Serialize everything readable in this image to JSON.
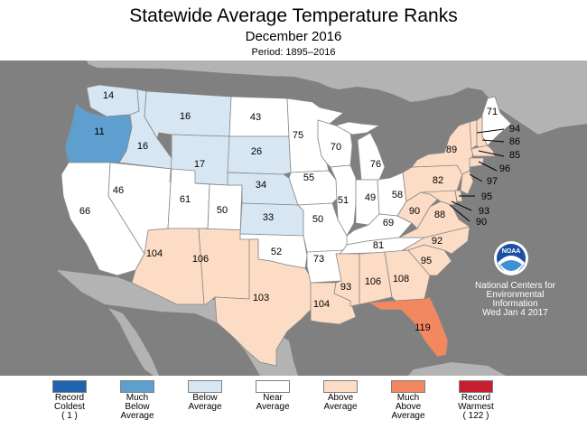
{
  "title": "Statewide Average Temperature Ranks",
  "subtitle": "December 2016",
  "period": "Period: 1895–2016",
  "logo_text": "NOAA",
  "credit": {
    "line1": "National Centers for",
    "line2": "Environmental",
    "line3": "Information",
    "date": "Wed Jan  4 2017"
  },
  "colors": {
    "record_coldest": "#1f63b0",
    "much_below": "#5e9fd0",
    "below": "#d6e7f3",
    "near": "#ffffff",
    "above": "#fddcc5",
    "much_above": "#f3875f",
    "record_warmest": "#c81f30",
    "ocean": "#808080",
    "land": "#b3b3b3",
    "state_border": "#888888"
  },
  "legend": [
    {
      "lines": [
        "Record",
        "Coldest",
        "( 1 )"
      ],
      "color": "#1f63b0"
    },
    {
      "lines": [
        "Much",
        "Below",
        "Average"
      ],
      "color": "#5e9fd0"
    },
    {
      "lines": [
        "Below",
        "Average"
      ],
      "color": "#d6e7f3"
    },
    {
      "lines": [
        "Near",
        "Average"
      ],
      "color": "#ffffff"
    },
    {
      "lines": [
        "Above",
        "Average"
      ],
      "color": "#fddcc5"
    },
    {
      "lines": [
        "Much",
        "Above",
        "Average"
      ],
      "color": "#f3875f"
    },
    {
      "lines": [
        "Record",
        "Warmest",
        "( 122 )"
      ],
      "color": "#c81f30"
    }
  ],
  "states": [
    {
      "state": "Washington",
      "rank": "14",
      "category": "below"
    },
    {
      "state": "Oregon",
      "rank": "11",
      "category": "much_below"
    },
    {
      "state": "California",
      "rank": "66",
      "category": "near"
    },
    {
      "state": "Idaho",
      "rank": "16",
      "category": "below"
    },
    {
      "state": "Nevada",
      "rank": "46",
      "category": "near"
    },
    {
      "state": "Montana",
      "rank": "16",
      "category": "below"
    },
    {
      "state": "Wyoming",
      "rank": "17",
      "category": "below"
    },
    {
      "state": "Utah",
      "rank": "61",
      "category": "near"
    },
    {
      "state": "Colorado",
      "rank": "50",
      "category": "near"
    },
    {
      "state": "Arizona",
      "rank": "104",
      "category": "above"
    },
    {
      "state": "New Mexico",
      "rank": "106",
      "category": "above"
    },
    {
      "state": "North Dakota",
      "rank": "43",
      "category": "near"
    },
    {
      "state": "South Dakota",
      "rank": "26",
      "category": "below"
    },
    {
      "state": "Nebraska",
      "rank": "34",
      "category": "below"
    },
    {
      "state": "Kansas",
      "rank": "33",
      "category": "below"
    },
    {
      "state": "Oklahoma",
      "rank": "52",
      "category": "near"
    },
    {
      "state": "Texas",
      "rank": "103",
      "category": "above"
    },
    {
      "state": "Minnesota",
      "rank": "75",
      "category": "near"
    },
    {
      "state": "Iowa",
      "rank": "55",
      "category": "near"
    },
    {
      "state": "Missouri",
      "rank": "50",
      "category": "near"
    },
    {
      "state": "Arkansas",
      "rank": "73",
      "category": "near"
    },
    {
      "state": "Louisiana",
      "rank": "104",
      "category": "above"
    },
    {
      "state": "Wisconsin",
      "rank": "70",
      "category": "near"
    },
    {
      "state": "Illinois",
      "rank": "51",
      "category": "near"
    },
    {
      "state": "Michigan",
      "rank": "76",
      "category": "near"
    },
    {
      "state": "Indiana",
      "rank": "49",
      "category": "near"
    },
    {
      "state": "Ohio",
      "rank": "58",
      "category": "near"
    },
    {
      "state": "Kentucky",
      "rank": "69",
      "category": "near"
    },
    {
      "state": "Tennessee",
      "rank": "81",
      "category": "near"
    },
    {
      "state": "Mississippi",
      "rank": "93",
      "category": "above"
    },
    {
      "state": "Alabama",
      "rank": "106",
      "category": "above"
    },
    {
      "state": "Georgia",
      "rank": "108",
      "category": "above"
    },
    {
      "state": "Florida",
      "rank": "119",
      "category": "much_above"
    },
    {
      "state": "South Carolina",
      "rank": "95",
      "category": "above"
    },
    {
      "state": "North Carolina",
      "rank": "92",
      "category": "above"
    },
    {
      "state": "Virginia",
      "rank": "88",
      "category": "above"
    },
    {
      "state": "West Virginia",
      "rank": "90",
      "category": "above"
    },
    {
      "state": "Pennsylvania",
      "rank": "82",
      "category": "above"
    },
    {
      "state": "New York",
      "rank": "89",
      "category": "above"
    },
    {
      "state": "Maine",
      "rank": "71",
      "category": "near"
    },
    {
      "state": "Vermont",
      "rank": "94",
      "category": "above"
    },
    {
      "state": "New Hampshire",
      "rank": "86",
      "category": "above"
    },
    {
      "state": "Massachusetts",
      "rank": "85",
      "category": "above"
    },
    {
      "state": "Connecticut",
      "rank": "96",
      "category": "above"
    },
    {
      "state": "New Jersey",
      "rank": "97",
      "category": "above"
    },
    {
      "state": "Delaware",
      "rank": "95",
      "category": "above"
    },
    {
      "state": "Maryland",
      "rank": "93",
      "category": "above"
    },
    {
      "state": "DC",
      "rank": "90",
      "category": "above"
    }
  ]
}
